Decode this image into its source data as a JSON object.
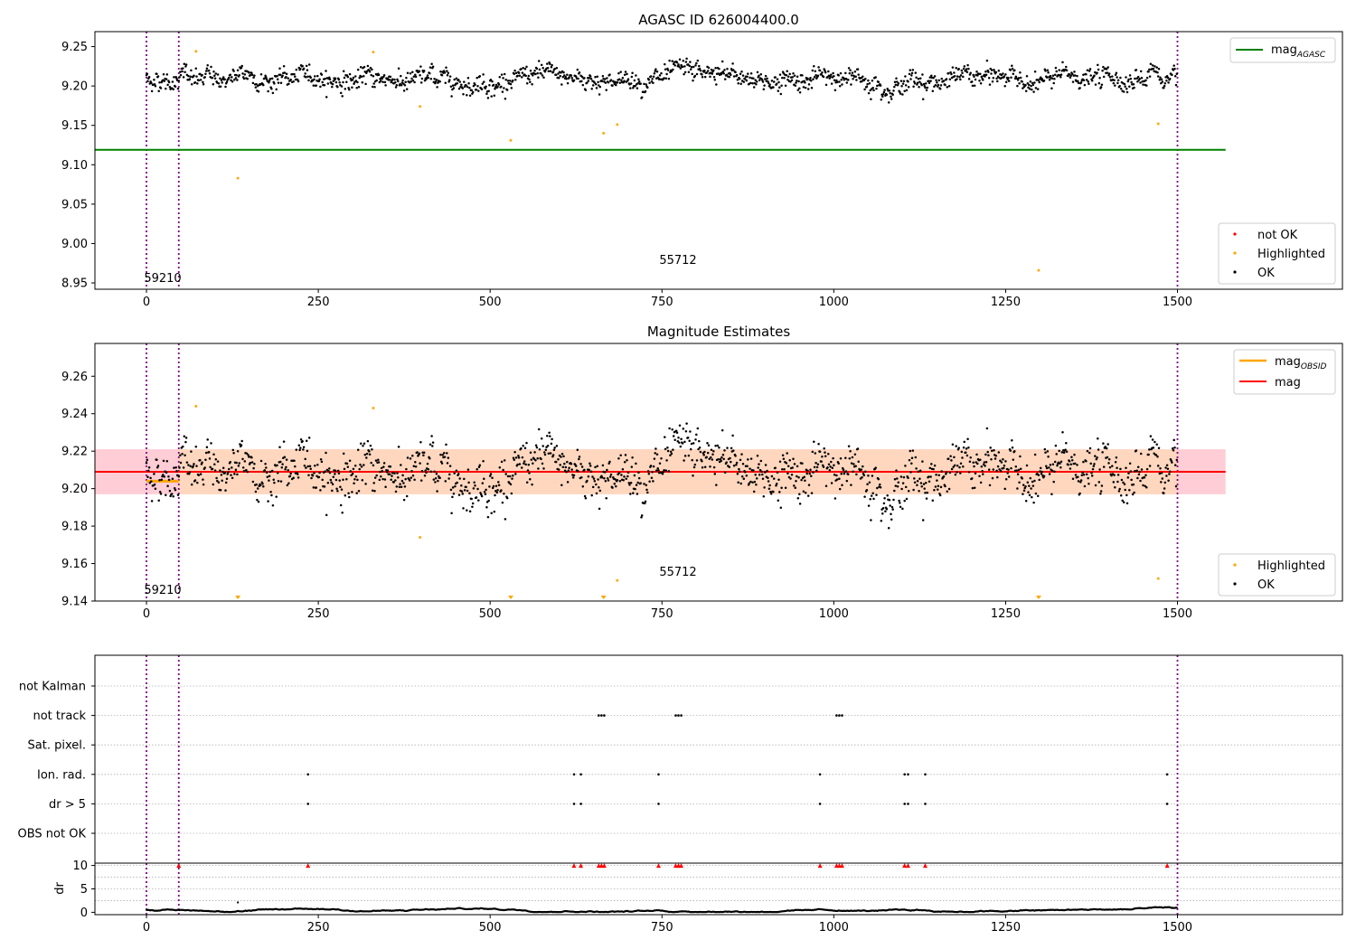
{
  "colors": {
    "ok": "#000000",
    "highlighted": "#ffa500",
    "not_ok": "#ff0000",
    "agasc_line": "#008000",
    "mag_line": "#ff0000",
    "mag_obsid": "#ffa500",
    "band_outer": "#ffc0cb",
    "band_inner": "#ffdab9",
    "vline": "#800080"
  },
  "chart_data": [
    {
      "type": "scatter",
      "title": "AGASC ID 626004400.0",
      "xlabel": "",
      "ylabel": "",
      "xlim": [
        -75,
        1740
      ],
      "ylim": [
        8.942,
        9.269
      ],
      "xticks": [
        0,
        250,
        500,
        750,
        1000,
        1250,
        1500
      ],
      "yticks": [
        9.25,
        9.2,
        9.15,
        9.1,
        9.05,
        9.0,
        8.95
      ],
      "ytick_labels": [
        "9.25",
        "9.20",
        "9.15",
        "9.10",
        "9.05",
        "9.00",
        "8.95"
      ],
      "grid": false,
      "vlines": [
        0,
        47,
        1500
      ],
      "annotations": [
        {
          "text": "59210",
          "x": 22,
          "y": 8.953
        },
        {
          "text": "55712",
          "x": 770,
          "y": 8.976
        }
      ],
      "hlines": [
        {
          "name": "magAGASC",
          "y": 9.119,
          "x_range": [
            -75,
            1570
          ]
        }
      ],
      "series": [
        {
          "name": "OK",
          "kind": "ok_band",
          "y_center": 9.209,
          "y_spread": 0.012,
          "x_range": [
            0,
            1500
          ],
          "count": 1500
        },
        {
          "name": "Highlighted",
          "x": [
            72,
            133,
            330,
            398,
            530,
            665,
            685,
            1298,
            1472
          ],
          "y": [
            9.244,
            9.083,
            9.243,
            9.174,
            9.131,
            9.14,
            9.151,
            8.966,
            9.152
          ]
        }
      ],
      "legends": [
        {
          "placement": "top-right",
          "entries": [
            {
              "label": "mag",
              "sub": "AGASC",
              "kind": "line",
              "color": "agasc_line"
            }
          ]
        },
        {
          "placement": "bottom-right",
          "entries": [
            {
              "label": "not OK",
              "kind": "dot",
              "color": "not_ok"
            },
            {
              "label": "Highlighted",
              "kind": "dot",
              "color": "highlighted"
            },
            {
              "label": "OK",
              "kind": "dot",
              "color": "ok"
            }
          ]
        }
      ]
    },
    {
      "type": "scatter",
      "title": "Magnitude Estimates",
      "xlabel": "",
      "ylabel": "",
      "xlim": [
        -75,
        1740
      ],
      "ylim": [
        9.14,
        9.2775
      ],
      "xticks": [
        0,
        250,
        500,
        750,
        1000,
        1250,
        1500
      ],
      "yticks": [
        9.26,
        9.24,
        9.22,
        9.2,
        9.18,
        9.16,
        9.14
      ],
      "ytick_labels": [
        "9.26",
        "9.24",
        "9.22",
        "9.20",
        "9.18",
        "9.16",
        "9.14"
      ],
      "grid": false,
      "vlines": [
        0,
        47,
        1500
      ],
      "annotations": [
        {
          "text": "59210",
          "x": 22,
          "y": 9.1445
        },
        {
          "text": "55712",
          "x": 770,
          "y": 9.1555
        }
      ],
      "bands": [
        {
          "y_range": [
            9.197,
            9.221
          ],
          "x_range": [
            -75,
            1570
          ],
          "color": "band_outer"
        },
        {
          "y_range": [
            9.197,
            9.221
          ],
          "x_range": [
            47,
            1500
          ],
          "color": "band_inner"
        }
      ],
      "hlines": [
        {
          "name": "mag",
          "y": 9.209,
          "x_range": [
            -75,
            1570
          ]
        }
      ],
      "segments": [
        {
          "name": "magOBSID",
          "x_range": [
            0,
            47
          ],
          "y": 9.204
        }
      ],
      "series": [
        {
          "name": "OK",
          "kind": "ok_band",
          "y_center": 9.209,
          "y_spread": 0.012,
          "x_range": [
            0,
            1500
          ],
          "count": 1500
        },
        {
          "name": "Highlighted",
          "x": [
            72,
            330,
            398,
            685,
            1472
          ],
          "y": [
            9.244,
            9.243,
            9.174,
            9.151,
            9.152
          ]
        },
        {
          "name": "Highlighted (below range)",
          "marker": "triangle-down",
          "x": [
            133,
            530,
            665,
            1298
          ],
          "y": [
            9.141,
            9.141,
            9.141,
            9.141
          ]
        }
      ],
      "legends": [
        {
          "placement": "top-right",
          "entries": [
            {
              "label": "mag",
              "sub": "OBSID",
              "kind": "line",
              "color": "mag_obsid"
            },
            {
              "label": "mag",
              "kind": "line",
              "color": "mag_line"
            }
          ]
        },
        {
          "placement": "bottom-right",
          "entries": [
            {
              "label": "Highlighted",
              "kind": "dot",
              "color": "highlighted"
            },
            {
              "label": "OK",
              "kind": "dot",
              "color": "ok"
            }
          ]
        }
      ]
    },
    {
      "type": "scatter",
      "title": "",
      "xlabel": "",
      "ylabel": "",
      "xlim": [
        -75,
        1740
      ],
      "categories": [
        "not Kalman",
        "not track",
        "Sat. pixel.",
        "Ion. rad.",
        "dr > 5",
        "OBS not OK"
      ],
      "vlines": [
        0,
        47,
        1500
      ],
      "grid": true,
      "series": [
        {
          "name": "not Kalman",
          "x": []
        },
        {
          "name": "not track",
          "x": [
            658,
            662,
            666,
            770,
            774,
            778,
            1004,
            1008,
            1012
          ]
        },
        {
          "name": "Sat. pixel.",
          "x": []
        },
        {
          "name": "Ion. rad.",
          "x": [
            235,
            622,
            632,
            745,
            980,
            1103,
            1108,
            1133,
            1485
          ]
        },
        {
          "name": "dr > 5",
          "x": [
            235,
            622,
            632,
            745,
            980,
            1103,
            1108,
            1133,
            1485
          ]
        },
        {
          "name": "OBS not OK",
          "x": []
        }
      ]
    },
    {
      "type": "scatter",
      "title": "",
      "xlabel": "",
      "ylabel": "dr",
      "xlim": [
        -75,
        1740
      ],
      "ylim": [
        -0.5,
        10.5
      ],
      "xticks": [
        0,
        250,
        500,
        750,
        1000,
        1250,
        1500
      ],
      "yticks": [
        0,
        5,
        10
      ],
      "ytick_labels": [
        "0",
        "5",
        "10"
      ],
      "vlines": [
        0,
        47,
        1500
      ],
      "series": [
        {
          "name": "dr",
          "kind": "dr_baseline",
          "x_range": [
            0,
            1500
          ],
          "y_base": 0.5,
          "count": 1500
        },
        {
          "name": "dr clipped",
          "marker": "triangle-up",
          "x": [
            47,
            235,
            622,
            632,
            658,
            662,
            666,
            745,
            770,
            774,
            778,
            980,
            1004,
            1008,
            1012,
            1103,
            1108,
            1133,
            1485
          ],
          "y": [
            10,
            10,
            10,
            10,
            10,
            10,
            10,
            10,
            10,
            10,
            10,
            10,
            10,
            10,
            10,
            10,
            10,
            10,
            10
          ]
        },
        {
          "name": "dr outlier",
          "x": [
            133
          ],
          "y": [
            2.1
          ]
        }
      ]
    }
  ]
}
